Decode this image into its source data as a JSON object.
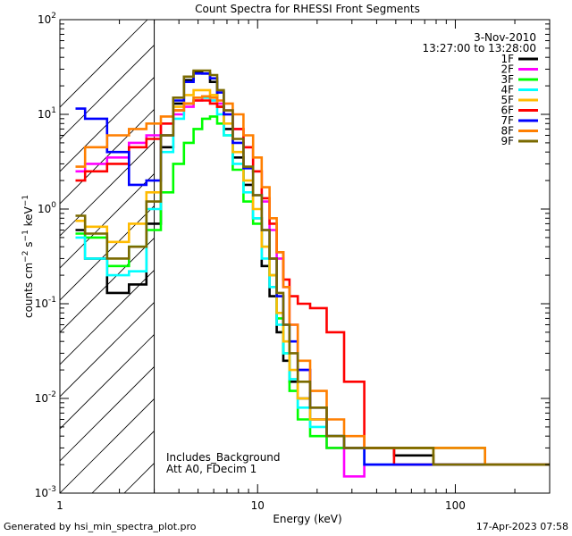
{
  "chart_data": {
    "type": "line",
    "title": "Count Spectra for RHESSI Front Segments",
    "xlabel": "Energy (keV)",
    "ylabel": "counts cm-2 s-1 keV-1",
    "xscale": "log",
    "yscale": "log",
    "xlim": [
      1,
      300
    ],
    "ylim": [
      0.001,
      100
    ],
    "x_ticks": [
      1,
      10,
      100
    ],
    "y_ticks": [
      0.001,
      0.01,
      0.1,
      1,
      10,
      100
    ],
    "y_tick_bases": [
      "10",
      "10",
      "10",
      "10",
      "10",
      "10"
    ],
    "y_tick_exponents": [
      "-3",
      "-2",
      "-1",
      "0",
      "1",
      "2"
    ],
    "hatched_region": {
      "x_max": 3
    },
    "date": "3-Nov-2010",
    "time_range": "13:27:00 to 13:28:00",
    "annotations": [
      "Includes_Background",
      "Att A0, FDecim 1"
    ],
    "series": [
      {
        "name": "1F",
        "color": "#000000",
        "x": [
          1.2,
          1.5,
          2,
          2.5,
          3,
          3.5,
          4,
          4.5,
          5,
          5.5,
          6,
          6.5,
          7,
          8,
          9,
          10,
          11,
          12,
          13,
          14,
          15,
          17,
          20,
          25,
          30,
          40,
          60,
          100,
          200,
          300
        ],
        "y": [
          0.6,
          0.3,
          0.13,
          0.16,
          0.7,
          4.5,
          13,
          23,
          28,
          27,
          22,
          12,
          7,
          3.5,
          1.8,
          0.8,
          0.25,
          0.12,
          0.05,
          0.025,
          0.015,
          0.01,
          0.006,
          0.004,
          0.003,
          0.003,
          0.0025,
          0.002,
          0.002,
          0.002
        ]
      },
      {
        "name": "2F",
        "color": "#ff00ff",
        "x": [
          1.2,
          1.5,
          2,
          2.5,
          3,
          3.5,
          4,
          4.5,
          5,
          5.5,
          6,
          6.5,
          7,
          8,
          9,
          10,
          11,
          12,
          13,
          14,
          15,
          17,
          20,
          25,
          30,
          40,
          60,
          100,
          200,
          300
        ],
        "y": [
          2.5,
          3.0,
          3.5,
          5.0,
          6.0,
          8.0,
          10,
          12,
          14,
          15,
          14,
          13,
          11,
          7,
          4.5,
          2.5,
          1.2,
          0.6,
          0.3,
          0.15,
          0.06,
          0.02,
          0.006,
          0.003,
          0.0015,
          0.002,
          0.002,
          0.002,
          0.002,
          0.002
        ]
      },
      {
        "name": "3F",
        "color": "#00ff00",
        "x": [
          1.2,
          1.5,
          2,
          2.5,
          3,
          3.5,
          4,
          4.5,
          5,
          5.5,
          6,
          6.5,
          7,
          8,
          9,
          10,
          11,
          12,
          13,
          14,
          15,
          17,
          20,
          25,
          30,
          40,
          60,
          100,
          200,
          300
        ],
        "y": [
          0.55,
          0.5,
          0.25,
          0.4,
          0.6,
          1.5,
          3,
          5,
          7,
          9,
          9.5,
          8,
          6,
          2.6,
          1.2,
          0.7,
          0.4,
          0.2,
          0.07,
          0.03,
          0.012,
          0.006,
          0.004,
          0.003,
          0.003,
          0.003,
          0.003,
          0.003,
          0.002,
          0.002
        ]
      },
      {
        "name": "4F",
        "color": "#00ffff",
        "x": [
          1.2,
          1.5,
          2,
          2.5,
          3,
          3.5,
          4,
          4.5,
          5,
          5.5,
          6,
          6.5,
          7,
          8,
          9,
          10,
          11,
          12,
          13,
          14,
          15,
          17,
          20,
          25,
          30,
          40,
          60,
          100,
          200,
          300
        ],
        "y": [
          0.5,
          0.3,
          0.2,
          0.22,
          1.0,
          4,
          9,
          13,
          15,
          15,
          14,
          10,
          6,
          3,
          1.5,
          0.8,
          0.3,
          0.15,
          0.06,
          0.03,
          0.016,
          0.008,
          0.005,
          0.004,
          0.003,
          0.002,
          0.002,
          0.002,
          0.002,
          0.002
        ]
      },
      {
        "name": "5F",
        "color": "#ffbb00",
        "x": [
          1.2,
          1.5,
          2,
          2.5,
          3,
          3.5,
          4,
          4.5,
          5,
          5.5,
          6,
          6.5,
          7,
          8,
          9,
          10,
          11,
          12,
          13,
          14,
          15,
          17,
          20,
          25,
          30,
          40,
          60,
          100,
          200,
          300
        ],
        "y": [
          0.75,
          0.65,
          0.45,
          0.7,
          1.5,
          6,
          12,
          16,
          18,
          18,
          16,
          12,
          8,
          4,
          2,
          1.0,
          0.4,
          0.2,
          0.08,
          0.04,
          0.02,
          0.01,
          0.006,
          0.004,
          0.003,
          0.003,
          0.003,
          0.002,
          0.002,
          0.002
        ]
      },
      {
        "name": "6F",
        "color": "#ff0000",
        "x": [
          1.2,
          1.5,
          2,
          2.5,
          3,
          3.5,
          4,
          4.5,
          5,
          5.5,
          6,
          6.5,
          7,
          8,
          9,
          10,
          11,
          12,
          13,
          14,
          15,
          17,
          20,
          25,
          30,
          40,
          60,
          100,
          200,
          300
        ],
        "y": [
          2.0,
          2.5,
          3.0,
          4.5,
          5.5,
          8,
          11,
          13,
          14,
          14,
          13,
          12,
          10,
          7,
          4.5,
          2.5,
          1.3,
          0.7,
          0.35,
          0.18,
          0.12,
          0.1,
          0.09,
          0.05,
          0.015,
          0.003,
          0.002,
          0.002,
          0.002,
          0.002
        ]
      },
      {
        "name": "7F",
        "color": "#0000ff",
        "x": [
          1.2,
          1.5,
          2,
          2.5,
          3,
          3.5,
          4,
          4.5,
          5,
          5.5,
          6,
          6.5,
          7,
          8,
          9,
          10,
          11,
          12,
          13,
          14,
          15,
          17,
          20,
          25,
          30,
          40,
          60,
          100,
          200,
          300
        ],
        "y": [
          11.5,
          9,
          4,
          1.8,
          2.0,
          6,
          14,
          22,
          27,
          27,
          24,
          17,
          10,
          5,
          2.7,
          1.4,
          0.6,
          0.3,
          0.12,
          0.06,
          0.04,
          0.02,
          0.008,
          0.004,
          0.003,
          0.002,
          0.002,
          0.002,
          0.002,
          0.002
        ]
      },
      {
        "name": "8F",
        "color": "#ff7f00",
        "x": [
          1.2,
          1.5,
          2,
          2.5,
          3,
          3.5,
          4,
          4.5,
          5,
          5.5,
          6,
          6.5,
          7,
          8,
          9,
          10,
          11,
          12,
          13,
          14,
          15,
          17,
          20,
          25,
          30,
          40,
          60,
          100,
          200,
          300
        ],
        "y": [
          2.8,
          4.5,
          6.0,
          7.0,
          8.0,
          9.5,
          11,
          13,
          15,
          15.5,
          15,
          14,
          13,
          10,
          6,
          3.5,
          1.7,
          0.8,
          0.35,
          0.15,
          0.06,
          0.025,
          0.012,
          0.006,
          0.004,
          0.003,
          0.003,
          0.003,
          0.002,
          0.002
        ]
      },
      {
        "name": "9F",
        "color": "#7a6a00",
        "x": [
          1.2,
          1.5,
          2,
          2.5,
          3,
          3.5,
          4,
          4.5,
          5,
          5.5,
          6,
          6.5,
          7,
          8,
          9,
          10,
          11,
          12,
          13,
          14,
          15,
          17,
          20,
          25,
          30,
          40,
          60,
          100,
          200,
          300
        ],
        "y": [
          0.85,
          0.55,
          0.3,
          0.4,
          1.2,
          6,
          15,
          25,
          29,
          29,
          26,
          18,
          11,
          5.5,
          2.8,
          1.4,
          0.6,
          0.3,
          0.13,
          0.06,
          0.03,
          0.015,
          0.008,
          0.004,
          0.003,
          0.003,
          0.003,
          0.002,
          0.002,
          0.002
        ]
      }
    ]
  },
  "footer": {
    "generated_by": "Generated by hsi_min_spectra_plot.pro",
    "date_time": "17-Apr-2023 07:58"
  }
}
